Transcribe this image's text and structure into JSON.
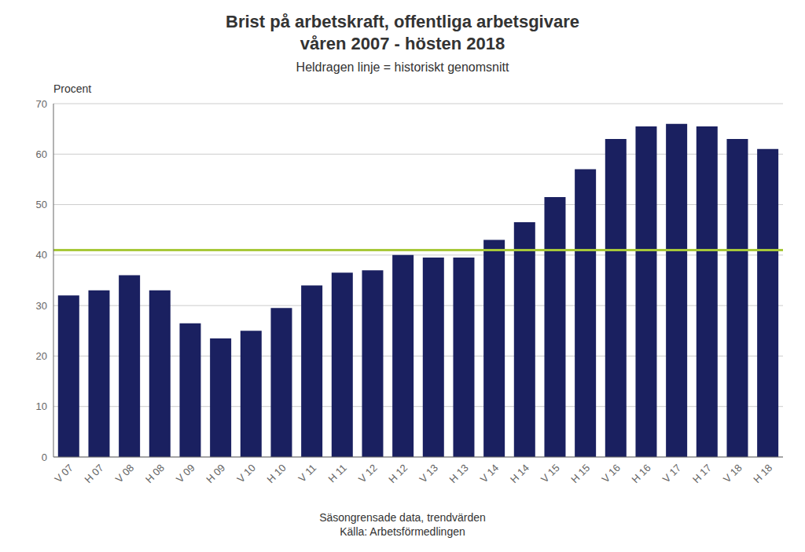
{
  "chart_data": {
    "type": "bar",
    "title": [
      "Brist på arbetskraft, offentliga arbetsgivare",
      "våren 2007 - hösten 2018"
    ],
    "subtitle": "Heldragen linje = historiskt genomsnitt",
    "ylabel": "Procent",
    "annotations": [
      "Säsongrensade data, trendvärden",
      "Källa: Arbetsförmedlingen"
    ],
    "categories": [
      "V 07",
      "H 07",
      "V 08",
      "H 08",
      "V 09",
      "H 09",
      "V 10",
      "H 10",
      "V 11",
      "H 11",
      "V 12",
      "H 12",
      "V 13",
      "H 13",
      "V 14",
      "H 14",
      "V 15",
      "H 15",
      "V 16",
      "H 16",
      "V 17",
      "H 17",
      "V 18",
      "H 18"
    ],
    "values": [
      32,
      33,
      36,
      33,
      26.5,
      23.5,
      25,
      29.5,
      34,
      36.5,
      37,
      40,
      39.5,
      39.5,
      43,
      46.5,
      51.5,
      57,
      63,
      65.5,
      66,
      65.5,
      63,
      61
    ],
    "color": "#1a2060",
    "reference_line": {
      "value": 41,
      "color": "#a8c83a"
    },
    "ylim": [
      0,
      70
    ],
    "yticks": [
      0,
      10,
      20,
      30,
      40,
      50,
      60,
      70
    ],
    "grid": true
  }
}
